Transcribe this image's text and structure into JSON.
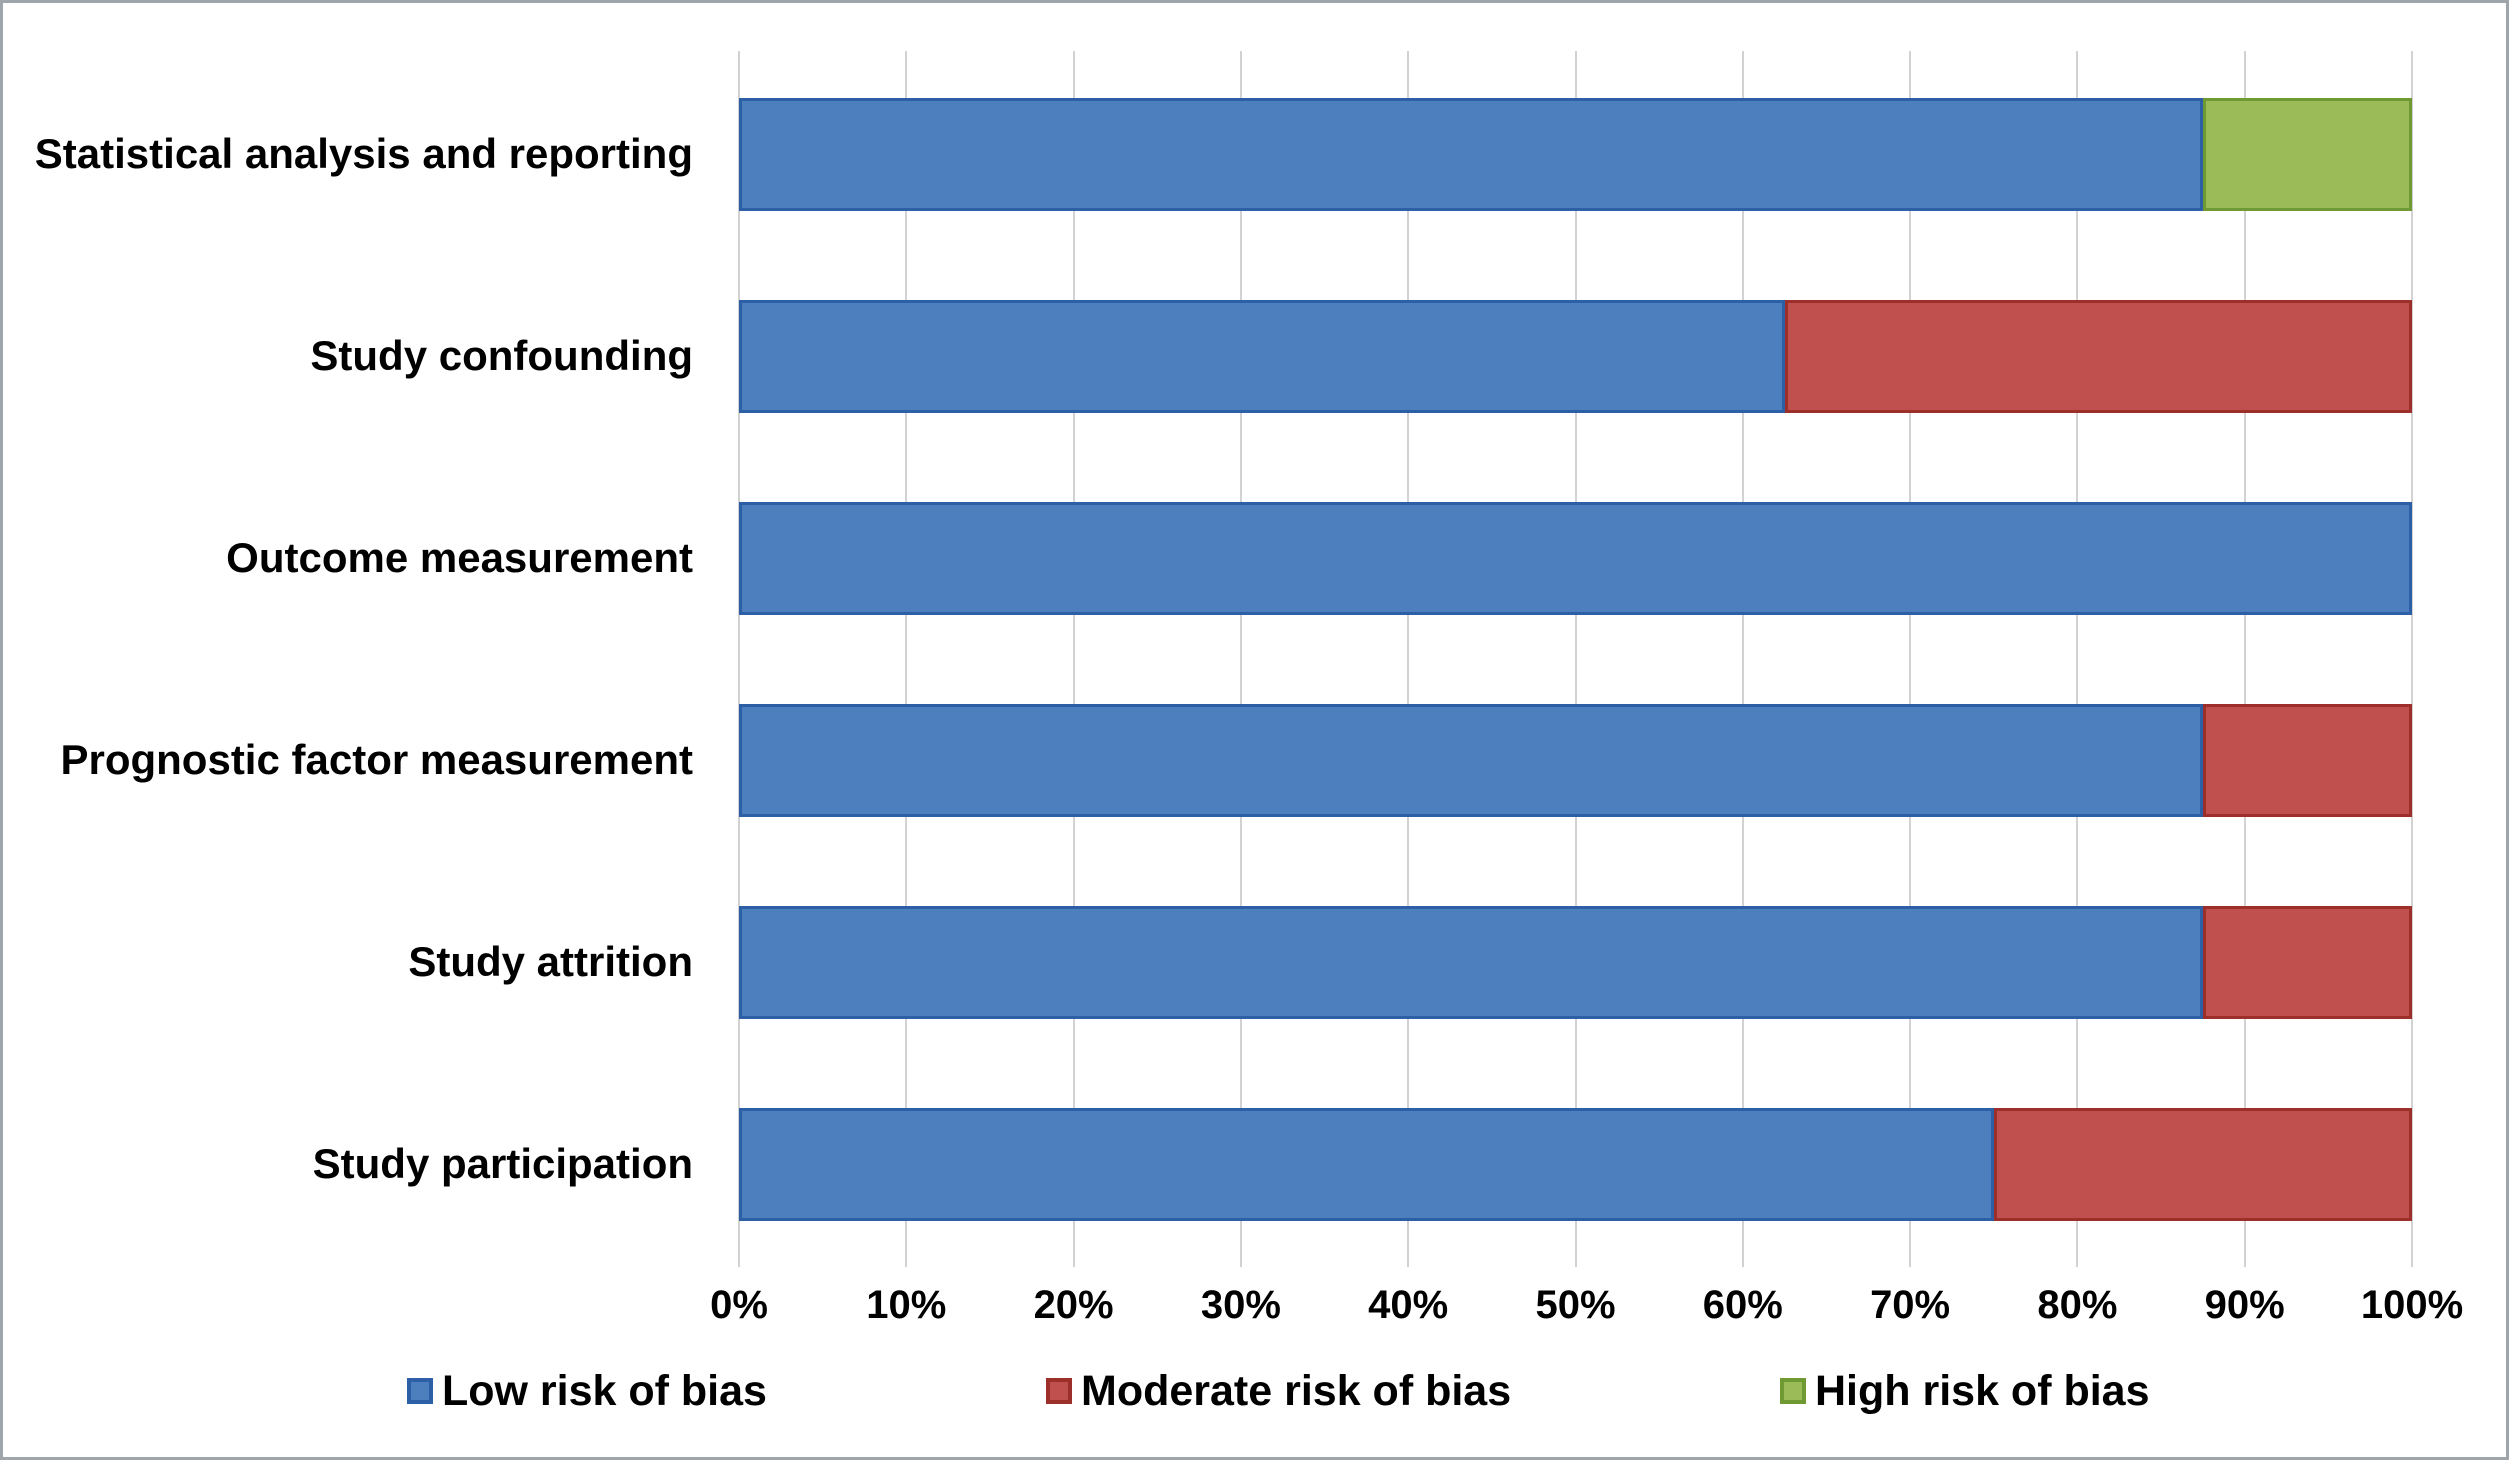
{
  "chart_data": {
    "type": "bar",
    "orientation": "horizontal",
    "stacked": true,
    "title": "",
    "xlabel": "",
    "ylabel": "",
    "xlim": [
      0,
      100
    ],
    "values_unit": "%",
    "grid": "vertical",
    "legend_position": "bottom",
    "x_tick_labels": [
      "0%",
      "10%",
      "20%",
      "30%",
      "40%",
      "50%",
      "60%",
      "70%",
      "80%",
      "90%",
      "100%"
    ],
    "categories_top_to_bottom": [
      "Statistical analysis and reporting",
      "Study confounding",
      "Outcome measurement",
      "Prognostic factor measurement",
      "Study attrition",
      "Study participation"
    ],
    "series": [
      {
        "name": "Low risk of bias",
        "color": "#4d7ebd",
        "border_color": "#2d5fa7",
        "values": [
          87.5,
          62.5,
          100,
          87.5,
          87.5,
          75
        ]
      },
      {
        "name": "Moderate risk of bias",
        "color": "#c0504d",
        "border_color": "#9d2f2a",
        "values": [
          0,
          37.5,
          0,
          12.5,
          12.5,
          25
        ]
      },
      {
        "name": "High risk of bias",
        "color": "#9bbb59",
        "border_color": "#6f9a33",
        "values": [
          12.5,
          0,
          0,
          0,
          0,
          0
        ]
      }
    ]
  },
  "style": {
    "background": "#ffffff",
    "frame_color": "#9fa6ab",
    "gridline_color": "#d2d2d2",
    "text_color": "#000000"
  }
}
